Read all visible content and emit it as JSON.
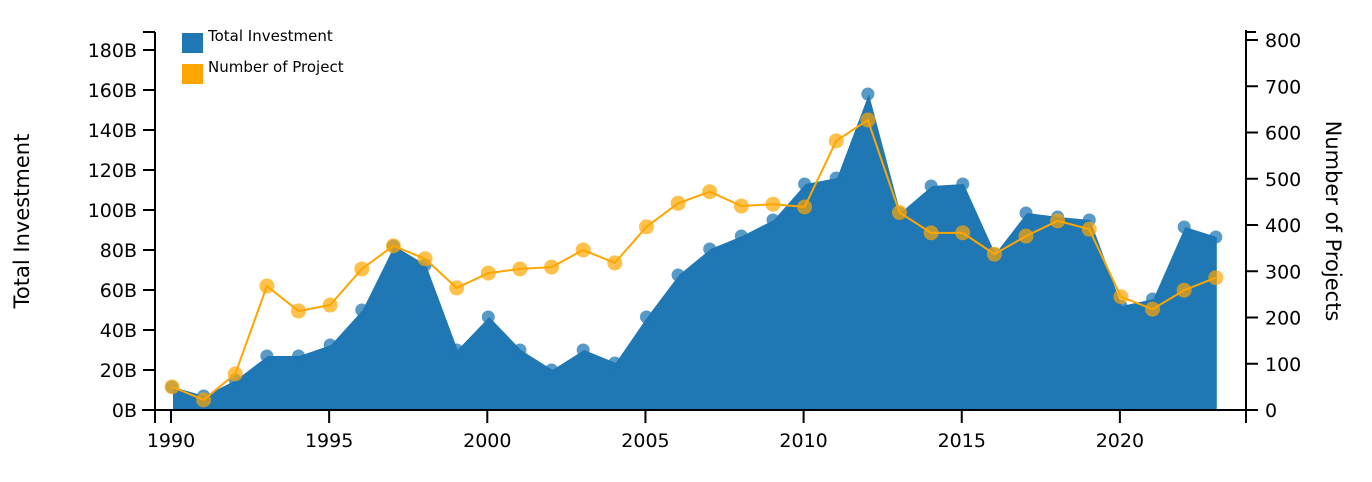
{
  "chart_data": {
    "type": "area+line",
    "title": "",
    "x": [
      1990,
      1991,
      1992,
      1993,
      1994,
      1995,
      1996,
      1997,
      1998,
      1999,
      2000,
      2001,
      2002,
      2003,
      2004,
      2005,
      2006,
      2007,
      2008,
      2009,
      2010,
      2011,
      2012,
      2013,
      2014,
      2015,
      2016,
      2017,
      2018,
      2019,
      2020,
      2021,
      2022,
      2023
    ],
    "series": [
      {
        "name": "Total Investment",
        "type": "area",
        "axis": "left",
        "unit": "B",
        "color": "#1f77b4",
        "values": [
          11.5,
          7,
          15,
          27,
          27,
          32.5,
          50,
          82,
          72.5,
          30,
          46.5,
          30,
          20,
          30,
          23.5,
          46.5,
          67.5,
          80.5,
          87,
          95,
          113,
          116,
          158,
          98.5,
          112,
          113,
          78,
          98.5,
          96.5,
          95,
          52,
          55.5,
          91.5,
          86.5
        ]
      },
      {
        "name": "Number of Project",
        "type": "line",
        "axis": "right",
        "color": "#ffa500",
        "values": [
          50,
          22,
          78,
          268,
          214,
          227,
          305,
          355,
          327,
          264,
          296,
          305,
          309,
          346,
          318,
          396,
          447,
          472,
          441,
          445,
          439,
          582,
          627,
          427,
          383,
          383,
          337,
          376,
          409,
          391,
          245,
          218,
          259,
          286
        ]
      }
    ],
    "xlabel": "",
    "ylabel": "Total Investment",
    "y2label": "Number of Projects",
    "xticks": [
      "1990",
      "1995",
      "2000",
      "2005",
      "2010",
      "2015",
      "2020"
    ],
    "yticks": [
      "0B",
      "20B",
      "40B",
      "60B",
      "80B",
      "100B",
      "120B",
      "140B",
      "160B",
      "180B"
    ],
    "y2ticks": [
      "0",
      "100",
      "200",
      "300",
      "400",
      "500",
      "600",
      "700",
      "800"
    ],
    "ylim": [
      0,
      190
    ],
    "y2lim": [
      0,
      820
    ],
    "grid": false,
    "legend_position": "top-left"
  },
  "legend": {
    "items": [
      {
        "label": "Total Investment",
        "color": "#1f77b4"
      },
      {
        "label": "Number of Project",
        "color": "#ffa500"
      }
    ]
  },
  "axes": {
    "left_title": "Total Investment",
    "right_title": "Number of Projects"
  }
}
